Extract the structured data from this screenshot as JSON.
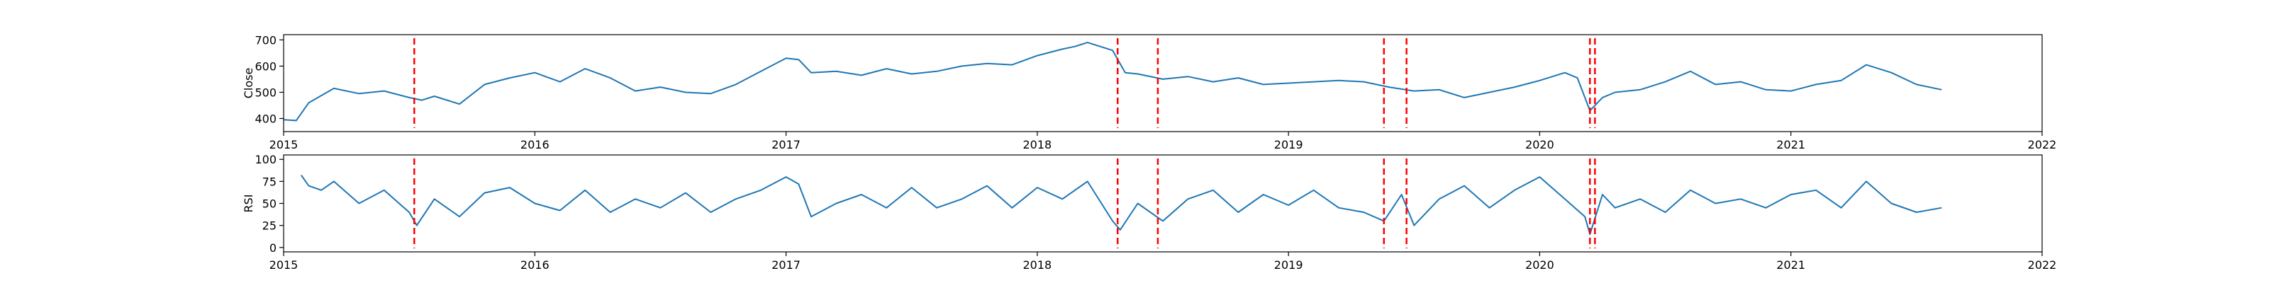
{
  "chart_data": [
    {
      "type": "line",
      "ylabel": "Close",
      "xlabel": "",
      "xlim": [
        2015.0,
        2022.0
      ],
      "ylim": [
        350,
        720
      ],
      "yticks": [
        400,
        500,
        600,
        700
      ],
      "xtick_labels": [
        "2015",
        "2016",
        "2017",
        "2018",
        "2019",
        "2020",
        "2021",
        "2022"
      ],
      "series": [
        {
          "name": "Close",
          "color": "#1f77b4",
          "x": [
            2015.0,
            2015.05,
            2015.1,
            2015.2,
            2015.3,
            2015.4,
            2015.5,
            2015.55,
            2015.6,
            2015.7,
            2015.8,
            2015.9,
            2016.0,
            2016.1,
            2016.2,
            2016.3,
            2016.4,
            2016.5,
            2016.6,
            2016.7,
            2016.8,
            2016.9,
            2017.0,
            2017.05,
            2017.1,
            2017.2,
            2017.3,
            2017.4,
            2017.5,
            2017.6,
            2017.7,
            2017.8,
            2017.9,
            2018.0,
            2018.1,
            2018.15,
            2018.2,
            2018.3,
            2018.35,
            2018.4,
            2018.5,
            2018.6,
            2018.7,
            2018.8,
            2018.9,
            2019.0,
            2019.1,
            2019.2,
            2019.3,
            2019.4,
            2019.5,
            2019.6,
            2019.7,
            2019.8,
            2019.9,
            2020.0,
            2020.1,
            2020.15,
            2020.2,
            2020.25,
            2020.3,
            2020.4,
            2020.5,
            2020.6,
            2020.7,
            2020.8,
            2020.9,
            2021.0,
            2021.1,
            2021.2,
            2021.3,
            2021.4,
            2021.5,
            2021.6
          ],
          "values": [
            395,
            392,
            460,
            515,
            495,
            505,
            480,
            470,
            485,
            455,
            530,
            555,
            575,
            540,
            590,
            555,
            505,
            520,
            500,
            495,
            530,
            580,
            630,
            625,
            575,
            580,
            565,
            590,
            570,
            580,
            600,
            610,
            605,
            640,
            665,
            675,
            690,
            660,
            575,
            570,
            550,
            560,
            540,
            555,
            530,
            535,
            540,
            545,
            540,
            520,
            505,
            510,
            480,
            500,
            520,
            545,
            575,
            555,
            430,
            480,
            500,
            510,
            540,
            580,
            530,
            540,
            510,
            505,
            530,
            545,
            605,
            575,
            530,
            510
          ]
        }
      ],
      "vlines": [
        2015.52,
        2018.32,
        2018.48,
        2019.38,
        2019.47,
        2020.2,
        2020.22
      ],
      "vline_color": "#ff0000"
    },
    {
      "type": "line",
      "ylabel": "RSI",
      "xlabel": "",
      "xlim": [
        2015.0,
        2022.0
      ],
      "ylim": [
        -5,
        105
      ],
      "yticks": [
        0,
        25,
        50,
        75,
        100
      ],
      "xtick_labels": [
        "2015",
        "2016",
        "2017",
        "2018",
        "2019",
        "2020",
        "2021",
        "2022"
      ],
      "series": [
        {
          "name": "RSI",
          "color": "#1f77b4",
          "x": [
            2015.07,
            2015.1,
            2015.15,
            2015.2,
            2015.3,
            2015.4,
            2015.5,
            2015.53,
            2015.6,
            2015.7,
            2015.8,
            2015.9,
            2016.0,
            2016.1,
            2016.2,
            2016.3,
            2016.4,
            2016.5,
            2016.6,
            2016.7,
            2016.8,
            2016.9,
            2017.0,
            2017.05,
            2017.1,
            2017.2,
            2017.3,
            2017.4,
            2017.5,
            2017.6,
            2017.7,
            2017.8,
            2017.9,
            2018.0,
            2018.1,
            2018.2,
            2018.3,
            2018.33,
            2018.4,
            2018.5,
            2018.6,
            2018.7,
            2018.8,
            2018.9,
            2019.0,
            2019.1,
            2019.2,
            2019.3,
            2019.38,
            2019.45,
            2019.5,
            2019.6,
            2019.7,
            2019.8,
            2019.9,
            2020.0,
            2020.1,
            2020.18,
            2020.2,
            2020.25,
            2020.3,
            2020.4,
            2020.5,
            2020.6,
            2020.7,
            2020.8,
            2020.9,
            2021.0,
            2021.1,
            2021.2,
            2021.3,
            2021.4,
            2021.5,
            2021.6
          ],
          "values": [
            82,
            70,
            65,
            75,
            50,
            65,
            40,
            25,
            55,
            35,
            62,
            68,
            50,
            42,
            65,
            40,
            55,
            45,
            62,
            40,
            55,
            65,
            80,
            72,
            35,
            50,
            60,
            45,
            68,
            45,
            55,
            70,
            45,
            68,
            55,
            75,
            30,
            20,
            50,
            30,
            55,
            65,
            40,
            60,
            48,
            65,
            45,
            40,
            30,
            60,
            25,
            55,
            70,
            45,
            65,
            80,
            55,
            35,
            15,
            60,
            45,
            55,
            40,
            65,
            50,
            55,
            45,
            60,
            65,
            45,
            75,
            50,
            40,
            45
          ]
        }
      ],
      "vlines": [
        2015.52,
        2018.32,
        2018.48,
        2019.38,
        2019.47,
        2020.2,
        2020.22
      ],
      "vline_color": "#ff0000"
    }
  ]
}
